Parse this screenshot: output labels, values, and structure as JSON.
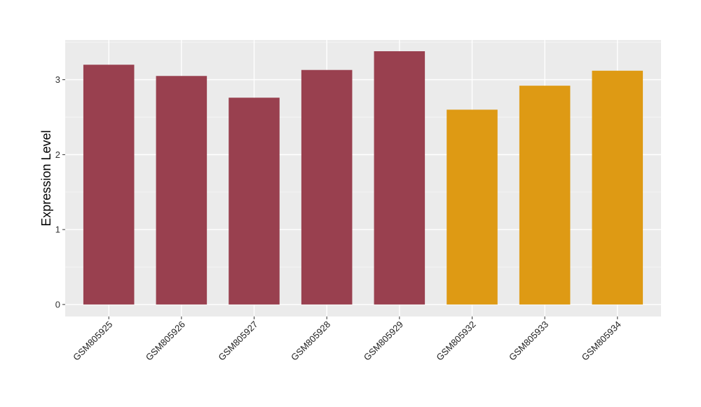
{
  "chart_data": {
    "type": "bar",
    "categories": [
      "GSM805925",
      "GSM805926",
      "GSM805927",
      "GSM805928",
      "GSM805929",
      "GSM805932",
      "GSM805933",
      "GSM805934"
    ],
    "values": [
      3.2,
      3.05,
      2.76,
      3.13,
      3.38,
      2.6,
      2.92,
      3.12
    ],
    "bar_colors": [
      "#99404f",
      "#99404f",
      "#99404f",
      "#99404f",
      "#99404f",
      "#de9a14",
      "#de9a14",
      "#de9a14"
    ],
    "title": "",
    "xlabel": "",
    "ylabel": "Expression Level",
    "ylim": [
      -0.16,
      3.53
    ],
    "yticks": [
      0,
      1,
      2,
      3
    ],
    "grid": true,
    "panel_background": "#ebebeb",
    "grid_color": "#ffffff"
  }
}
